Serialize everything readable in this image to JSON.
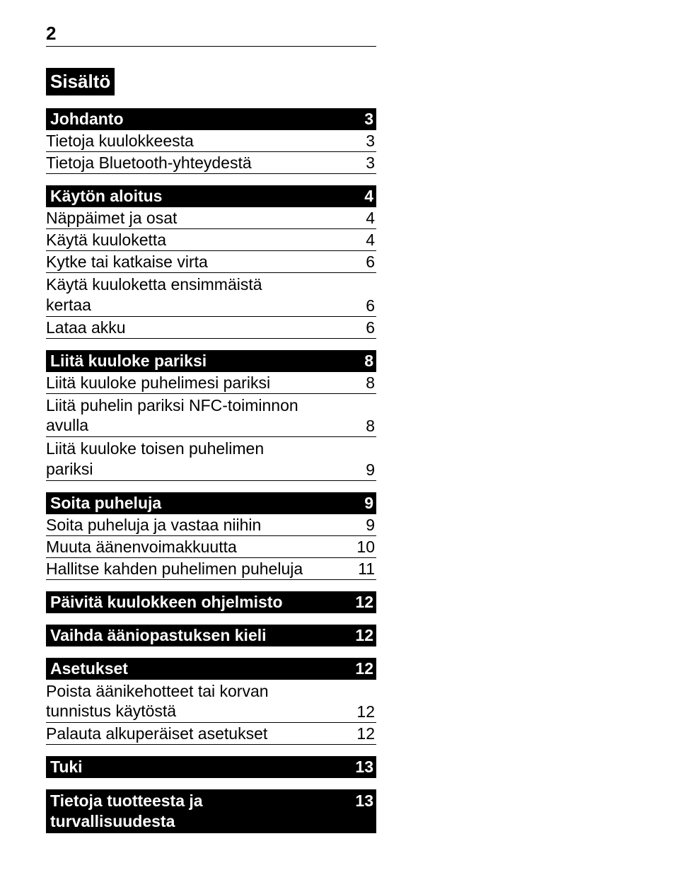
{
  "page_number": "2",
  "contents_title": "Sisältö",
  "sections": [
    {
      "header": {
        "label": "Johdanto",
        "page": "3"
      },
      "items": [
        {
          "label": "Tietoja kuulokkeesta",
          "page": "3"
        },
        {
          "label": "Tietoja Bluetooth-yhteydestä",
          "page": "3"
        }
      ]
    },
    {
      "header": {
        "label": "Käytön aloitus",
        "page": "4"
      },
      "items": [
        {
          "label": "Näppäimet ja osat",
          "page": "4"
        },
        {
          "label": "Käytä kuuloketta",
          "page": "4"
        },
        {
          "label": "Kytke tai katkaise virta",
          "page": "6"
        },
        {
          "label": "Käytä kuuloketta ensimmäistä\nkertaa",
          "page": "6"
        },
        {
          "label": "Lataa akku",
          "page": "6"
        }
      ]
    },
    {
      "header": {
        "label": "Liitä kuuloke pariksi",
        "page": "8"
      },
      "items": [
        {
          "label": "Liitä kuuloke puhelimesi pariksi",
          "page": "8"
        },
        {
          "label": "Liitä puhelin pariksi NFC-toiminnon\navulla",
          "page": "8"
        },
        {
          "label": "Liitä kuuloke toisen puhelimen\npariksi",
          "page": "9"
        }
      ]
    },
    {
      "header": {
        "label": "Soita puheluja",
        "page": "9"
      },
      "items": [
        {
          "label": "Soita puheluja ja vastaa niihin",
          "page": "9"
        },
        {
          "label": "Muuta äänenvoimakkuutta",
          "page": "10"
        },
        {
          "label": "Hallitse kahden puhelimen puheluja",
          "page": "11"
        }
      ]
    },
    {
      "header": {
        "label": "Päivitä kuulokkeen ohjelmisto",
        "page": "12"
      },
      "items": []
    },
    {
      "header": {
        "label": "Vaihda ääniopastuksen kieli",
        "page": "12"
      },
      "items": []
    },
    {
      "header": {
        "label": "Asetukset",
        "page": "12"
      },
      "items": [
        {
          "label": "Poista äänikehotteet tai korvan\ntunnistus käytöstä",
          "page": "12"
        },
        {
          "label": "Palauta alkuperäiset asetukset",
          "page": "12"
        }
      ]
    },
    {
      "header": {
        "label": "Tuki",
        "page": "13"
      },
      "items": []
    },
    {
      "header": {
        "label": "Tietoja tuotteesta ja\nturvallisuudesta",
        "page": "13"
      },
      "items": []
    }
  ]
}
